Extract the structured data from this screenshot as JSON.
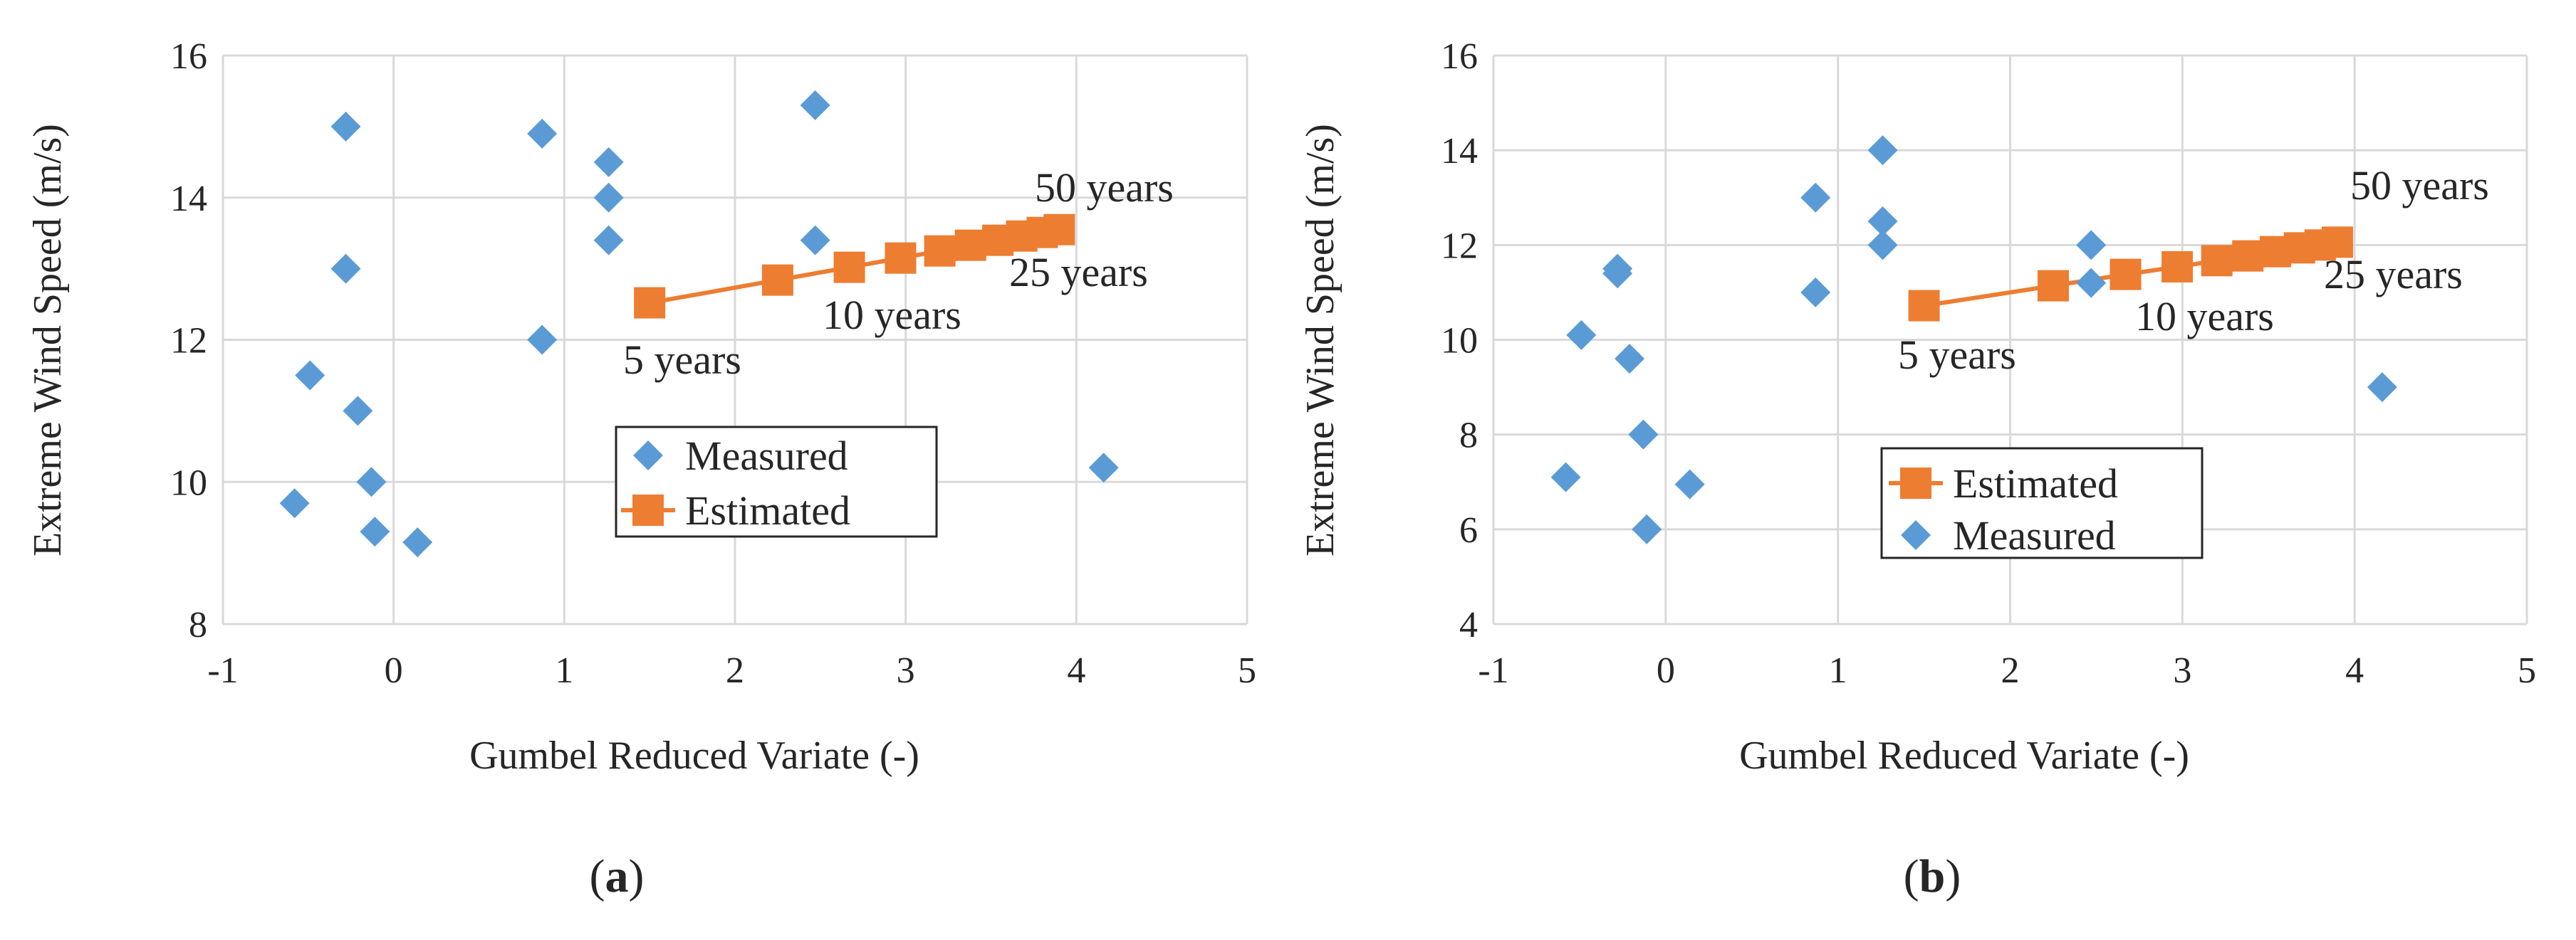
{
  "chart_data": [
    {
      "panel_label": "(a)",
      "type": "scatter",
      "xlabel": "Gumbel Reduced Variate (-)",
      "ylabel": "Extreme Wind Speed (m/s)",
      "xlim": [
        -1,
        5
      ],
      "ylim": [
        8,
        16
      ],
      "xticks": [
        -1,
        0,
        1,
        2,
        3,
        4,
        5
      ],
      "yticks": [
        8,
        10,
        12,
        14,
        16
      ],
      "grid": true,
      "legend_position": "center",
      "legend": [
        "Measured",
        "Estimated"
      ],
      "series": [
        {
          "name": "Measured",
          "marker": "diamond",
          "color": "#5B9BD5",
          "x": [
            -0.58,
            -0.49,
            -0.28,
            -0.28,
            -0.21,
            -0.13,
            -0.11,
            0.14,
            0.87,
            0.87,
            1.26,
            1.26,
            1.26,
            2.47,
            2.47,
            4.16
          ],
          "y": [
            9.7,
            11.5,
            15.0,
            13.0,
            11.0,
            10.0,
            9.3,
            9.15,
            14.9,
            12.0,
            14.5,
            14.0,
            13.4,
            15.3,
            13.4,
            10.2
          ]
        },
        {
          "name": "Estimated",
          "marker": "square",
          "line": true,
          "color": "#ED7D31",
          "x": [
            1.5,
            2.25,
            2.67,
            2.97,
            3.2,
            3.38,
            3.54,
            3.68,
            3.8,
            3.9
          ],
          "y": [
            12.52,
            12.84,
            13.02,
            13.15,
            13.25,
            13.33,
            13.4,
            13.46,
            13.51,
            13.55
          ]
        }
      ],
      "annotations": [
        "5 years",
        "10 years",
        "25 years",
        "50 years"
      ]
    },
    {
      "panel_label": "(b)",
      "type": "scatter",
      "xlabel": "Gumbel Reduced Variate (-)",
      "ylabel": "Extreme Wind Speed (m/s)",
      "xlim": [
        -1,
        5
      ],
      "ylim": [
        4,
        16
      ],
      "xticks": [
        -1,
        0,
        1,
        2,
        3,
        4,
        5
      ],
      "yticks": [
        4,
        6,
        8,
        10,
        12,
        14,
        16
      ],
      "grid": true,
      "legend_position": "center",
      "legend": [
        "Estimated",
        "Measured"
      ],
      "series": [
        {
          "name": "Measured",
          "marker": "diamond",
          "color": "#5B9BD5",
          "x": [
            -0.58,
            -0.49,
            -0.28,
            -0.28,
            -0.21,
            -0.13,
            -0.11,
            0.14,
            0.87,
            0.87,
            1.26,
            1.26,
            1.26,
            2.47,
            2.47,
            4.16
          ],
          "y": [
            7.1,
            10.1,
            11.5,
            11.4,
            9.6,
            8.0,
            6.0,
            6.95,
            13.0,
            11.0,
            14.0,
            12.5,
            12.0,
            12.0,
            11.2,
            9.0
          ]
        },
        {
          "name": "Estimated",
          "marker": "square",
          "line": true,
          "color": "#ED7D31",
          "x": [
            1.5,
            2.25,
            2.67,
            2.97,
            3.2,
            3.38,
            3.54,
            3.68,
            3.8,
            3.9
          ],
          "y": [
            10.72,
            11.14,
            11.38,
            11.54,
            11.67,
            11.77,
            11.86,
            11.94,
            12.0,
            12.06
          ]
        }
      ],
      "annotations": [
        "5 years",
        "10 years",
        "25 years",
        "50 years"
      ]
    }
  ]
}
